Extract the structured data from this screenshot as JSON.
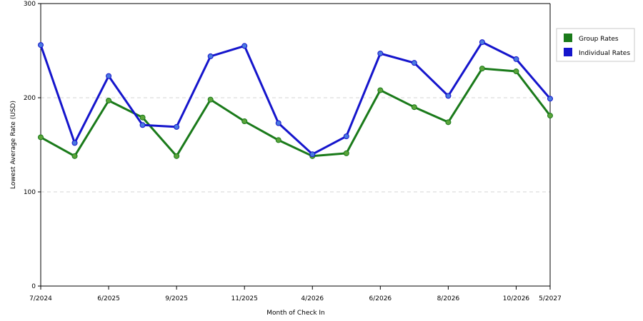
{
  "chart_data": {
    "type": "line",
    "xlabel": "Month of Check In",
    "ylabel": "Lowest Average Rate (USD)",
    "ylim": [
      0,
      300
    ],
    "yticks": [
      0,
      100,
      200,
      300
    ],
    "grid": "horizontal dashed",
    "legend_position": "right",
    "x_tick_labels": [
      {
        "index": 0,
        "label": "7/2024"
      },
      {
        "index": 2,
        "label": "6/2025"
      },
      {
        "index": 4,
        "label": "9/2025"
      },
      {
        "index": 6,
        "label": "11/2025"
      },
      {
        "index": 8,
        "label": "4/2026"
      },
      {
        "index": 10,
        "label": "6/2026"
      },
      {
        "index": 12,
        "label": "8/2026"
      },
      {
        "index": 14,
        "label": "10/2026"
      },
      {
        "index": 15,
        "label": "5/2027"
      }
    ],
    "series": [
      {
        "name": "Group Rates",
        "color": "#1a7a1a",
        "marker_color": "#5aa43a",
        "values": [
          158,
          138,
          197,
          179,
          138,
          198,
          175,
          155,
          138,
          141,
          208,
          190,
          174,
          231,
          228,
          181
        ]
      },
      {
        "name": "Individual Rates",
        "color": "#1515cc",
        "marker_color": "#4a7ae0",
        "values": [
          256,
          152,
          223,
          171,
          169,
          244,
          255,
          173,
          140,
          159,
          247,
          237,
          202,
          259,
          241,
          199
        ]
      }
    ]
  }
}
